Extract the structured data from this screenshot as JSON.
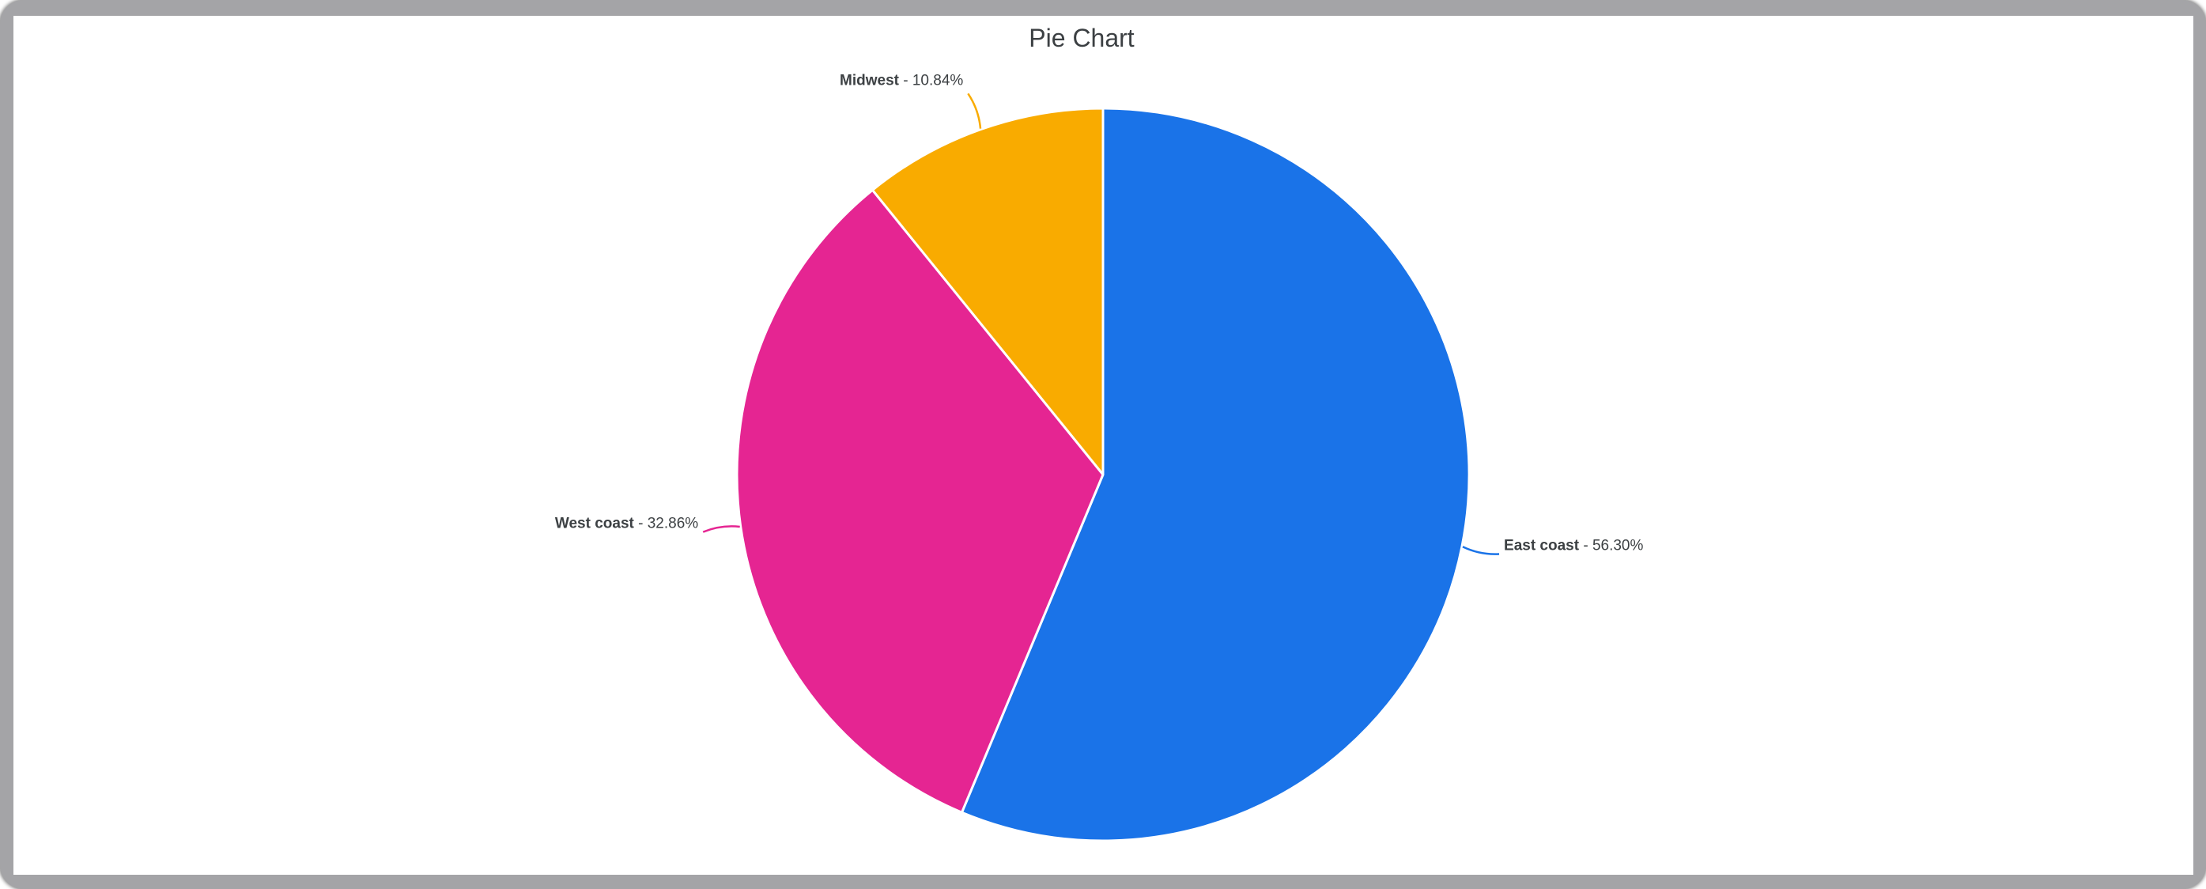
{
  "window": {
    "frame_color": "#a4a4a7",
    "frame_edge_color": "#77777a",
    "content_background": "#ffffff"
  },
  "chart_data": {
    "type": "pie",
    "title": "Pie Chart",
    "start_angle_deg": 0,
    "direction": "clockwise",
    "legend": "none",
    "grid": "off",
    "slice_border_color": "#ffffff",
    "label_color": "#3c4043",
    "title_color": "#3c4043",
    "separator": " - ",
    "slices": [
      {
        "label": "East coast",
        "percent": 56.3,
        "percent_display": "56.30%",
        "color": "#1a73e8"
      },
      {
        "label": "West coast",
        "percent": 32.86,
        "percent_display": "32.86%",
        "color": "#e52592"
      },
      {
        "label": "Midwest",
        "percent": 10.84,
        "percent_display": "10.84%",
        "color": "#f9ab00"
      }
    ]
  }
}
